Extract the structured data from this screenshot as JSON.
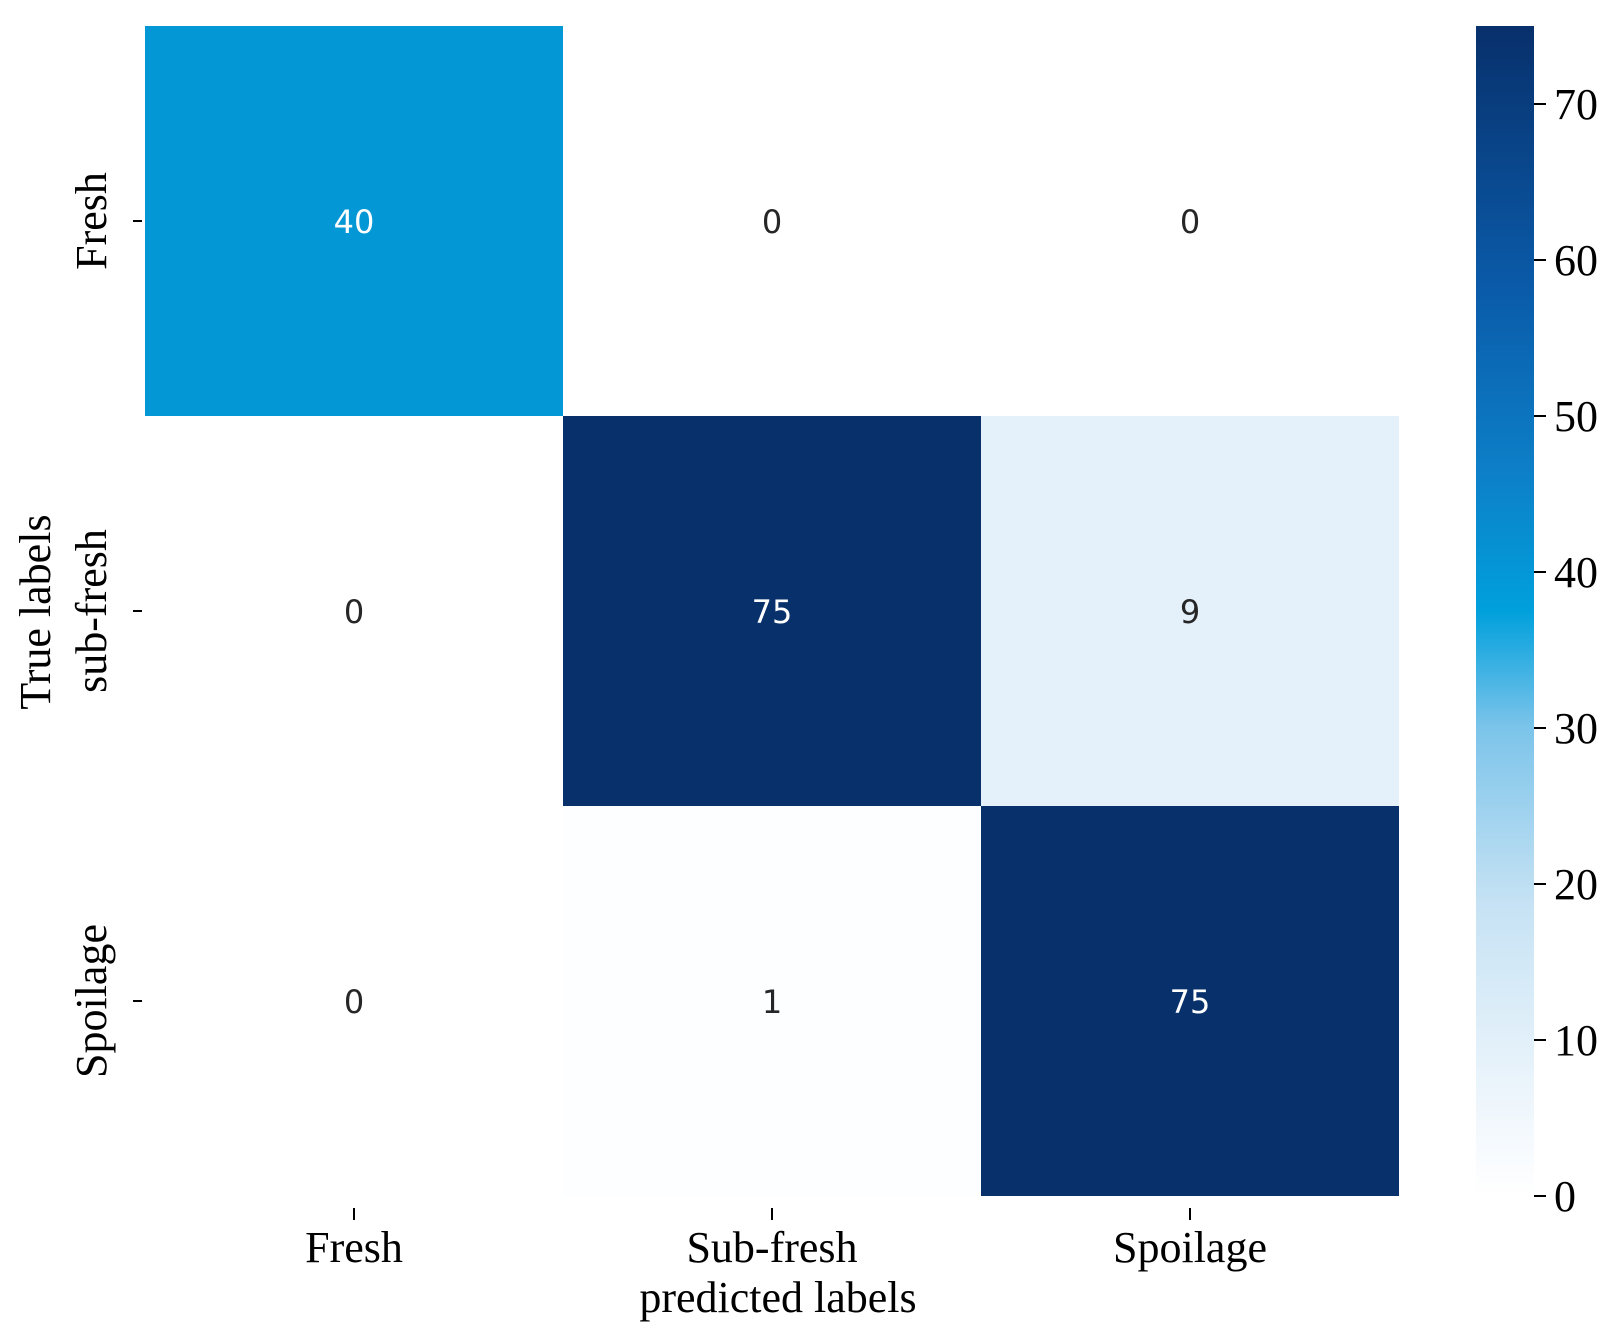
{
  "chart_data": {
    "type": "heatmap",
    "x_categories": [
      "Fresh",
      "Sub-fresh",
      "Spoilage"
    ],
    "y_categories": [
      "Fresh",
      "sub-fresh",
      "Spoilage"
    ],
    "matrix": [
      [
        40,
        0,
        0
      ],
      [
        0,
        75,
        9
      ],
      [
        0,
        1,
        75
      ]
    ],
    "xlabel": "predicted labels",
    "ylabel": "True labels",
    "colorbar": {
      "min": 0,
      "max": 75,
      "ticks": [
        0,
        10,
        20,
        30,
        40,
        50,
        60,
        70
      ]
    },
    "colors": {
      "low": "#f7fbff",
      "mid": "#00a0dc",
      "high": "#08306b",
      "light_text": "#ffffff",
      "dark_text": "#262626"
    },
    "legend": "colorbar-right"
  }
}
